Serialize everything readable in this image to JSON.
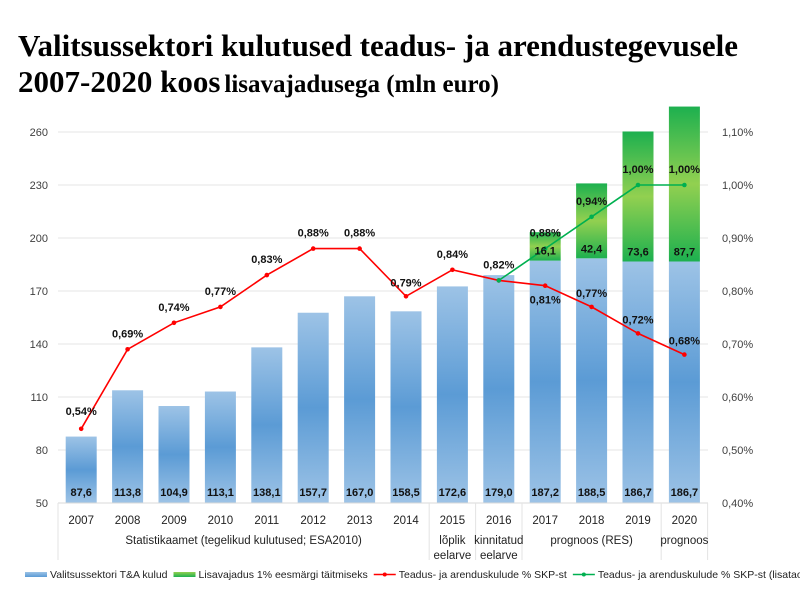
{
  "title": {
    "line1": "Valitsussektori kulutused teadus- ja arendustegevusele",
    "line2_main": "2007-2020 koos",
    "line2_sub": "lisavajadusega (mln euro)"
  },
  "colors": {
    "bar_blue_light": "#9dc3e6",
    "bar_blue_dark": "#5b9bd5",
    "bar_green_light": "#92d050",
    "bar_green_dark": "#1db04f",
    "line_red": "#ff0000",
    "line_green": "#00b050",
    "grid": "#e6e6e6"
  },
  "chart_data": {
    "type": "bar",
    "title": "Valitsussektori kulutused teadus- ja arendustegevusele 2007-2020 koos lisavajadusega (mln euro)",
    "categories": [
      "2007",
      "2008",
      "2009",
      "2010",
      "2011",
      "2012",
      "2013",
      "2014",
      "2015",
      "2016",
      "2017",
      "2018",
      "2019",
      "2020"
    ],
    "category_groups": [
      {
        "label": "Statistikaamet (tegelikud kulutused; ESA2010)",
        "from": 0,
        "to": 7
      },
      {
        "label": "lõplik eelarve",
        "from": 8,
        "to": 8
      },
      {
        "label": "kinnitatud eelarve",
        "from": 9,
        "to": 9
      },
      {
        "label": "prognoos (RES)",
        "from": 10,
        "to": 12
      },
      {
        "label": "prognoos",
        "from": 13,
        "to": 13
      }
    ],
    "y_left": {
      "ylim": [
        50,
        260
      ],
      "ticks": [
        50,
        80,
        110,
        140,
        170,
        200,
        230,
        260
      ]
    },
    "y_right": {
      "ylim": [
        0.4,
        1.1
      ],
      "ticks": [
        "0,40%",
        "0,50%",
        "0,60%",
        "0,70%",
        "0,80%",
        "0,90%",
        "1,00%",
        "1,10%"
      ]
    },
    "grid": true,
    "legend_position": "bottom",
    "series": [
      {
        "name": "Valitsussektori T&A kulud",
        "kind": "bar",
        "axis": "left",
        "values": [
          87.6,
          113.8,
          104.9,
          113.1,
          138.1,
          157.7,
          167.0,
          158.5,
          172.6,
          179.0,
          187.2,
          188.5,
          186.7,
          186.7
        ],
        "labels": [
          "87,6",
          "113,8",
          "104,9",
          "113,1",
          "138,1",
          "157,7",
          "167,0",
          "158,5",
          "172,6",
          "179,0",
          "187,2",
          "188,5",
          "186,7",
          "186,7"
        ]
      },
      {
        "name": "Lisavajadus 1% eesmärgi täitmiseks",
        "kind": "stacked-bar",
        "axis": "left",
        "values": [
          null,
          null,
          null,
          null,
          null,
          null,
          null,
          null,
          null,
          null,
          16.1,
          42.4,
          73.6,
          87.7
        ],
        "labels": [
          "",
          "",
          "",
          "",
          "",
          "",
          "",
          "",
          "",
          "",
          "16,1",
          "42,4",
          "73,6",
          "87,7"
        ]
      },
      {
        "name": "Teadus- ja arenduskulude % SKP-st",
        "kind": "line",
        "axis": "right",
        "values": [
          0.54,
          0.69,
          0.74,
          0.77,
          0.83,
          0.88,
          0.88,
          0.79,
          0.84,
          0.82,
          0.81,
          0.77,
          0.72,
          0.68
        ],
        "labels": [
          "0,54%",
          "0,69%",
          "0,74%",
          "0,77%",
          "0,83%",
          "0,88%",
          "0,88%",
          "0,79%",
          "0,84%",
          "0,82%",
          "0,81%",
          "0,77%",
          "0,72%",
          "0,68%"
        ]
      },
      {
        "name": "Teadus- ja arenduskulude % SKP-st (lisataotlustega kokku)",
        "kind": "line",
        "axis": "right",
        "values": [
          null,
          null,
          null,
          null,
          null,
          null,
          null,
          null,
          null,
          0.82,
          0.88,
          0.94,
          1.0,
          1.0
        ],
        "labels": [
          "",
          "",
          "",
          "",
          "",
          "",
          "",
          "",
          "",
          "",
          "0,88%",
          "0,94%",
          "1,00%",
          "1,00%"
        ]
      }
    ]
  }
}
